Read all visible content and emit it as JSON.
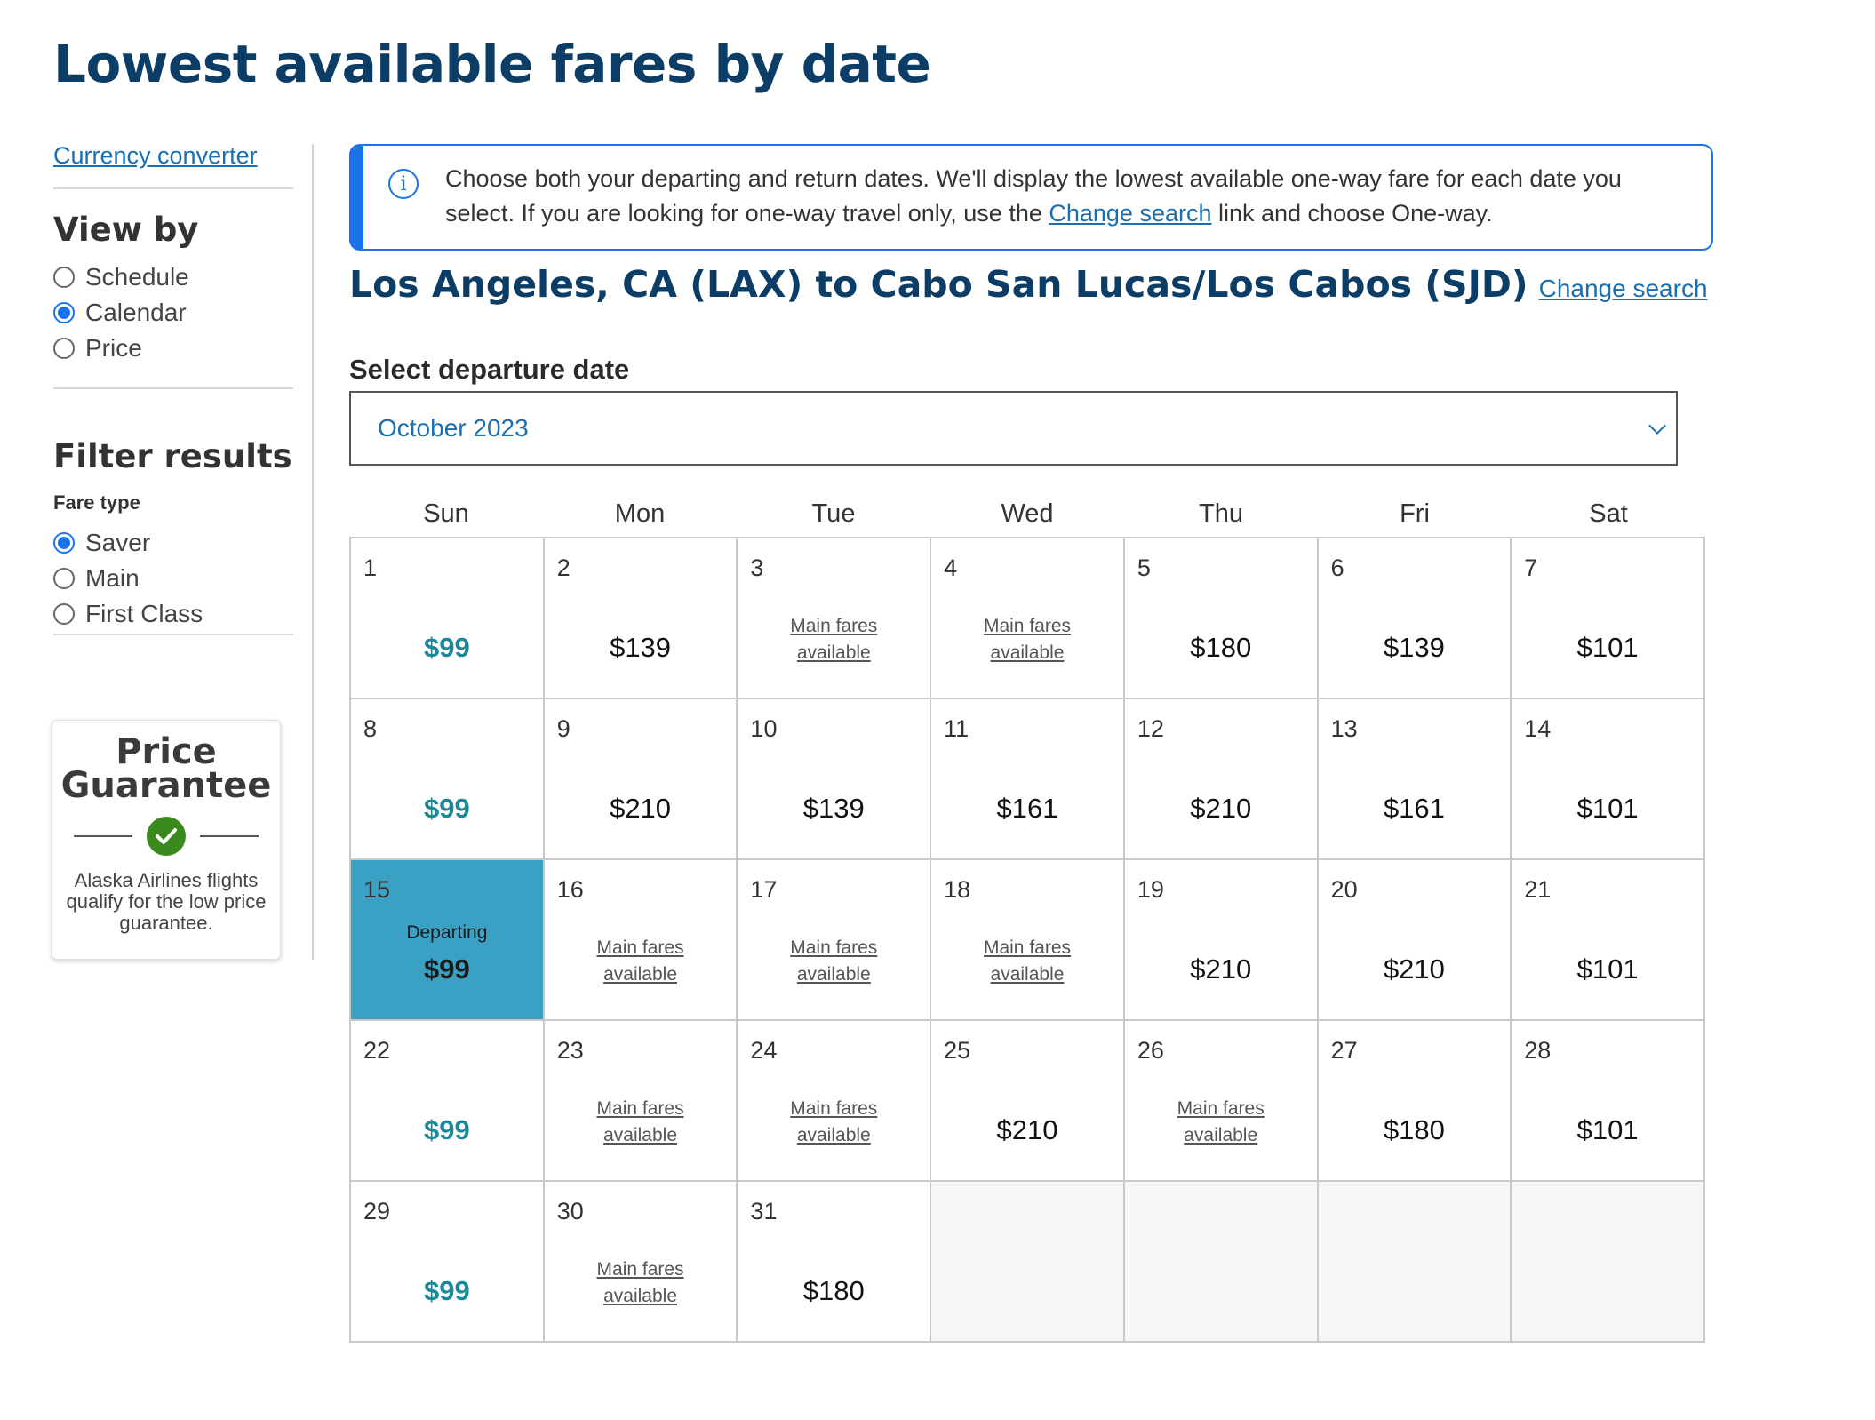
{
  "page_title": "Lowest available fares by date",
  "sidebar": {
    "currency_link": "Currency converter",
    "view_by_heading": "View by",
    "view_options": [
      {
        "label": "Schedule",
        "checked": false
      },
      {
        "label": "Calendar",
        "checked": true
      },
      {
        "label": "Price",
        "checked": false
      }
    ],
    "filter_heading": "Filter results",
    "fare_type_label": "Fare type",
    "fare_options": [
      {
        "label": "Saver",
        "checked": true
      },
      {
        "label": "Main",
        "checked": false
      },
      {
        "label": "First Class",
        "checked": false
      }
    ],
    "price_guarantee": {
      "title_line1": "Price",
      "title_line2": "Guarantee",
      "text": "Alaska Airlines flights qualify for the low price guarantee."
    }
  },
  "info": {
    "text_before": "Choose both your departing and return dates. We'll display the lowest available one-way fare for each date you select. If you are looking for one-way travel only, use the ",
    "link": "Change search",
    "text_after": " link and choose One-way."
  },
  "route": {
    "title": "Los Angeles, CA (LAX) to Cabo San Lucas/Los Cabos (SJD)",
    "change_link": "Change search"
  },
  "calendar": {
    "select_label": "Select departure date",
    "month": "October 2023",
    "day_headers": [
      "Sun",
      "Mon",
      "Tue",
      "Wed",
      "Thu",
      "Fri",
      "Sat"
    ],
    "main_fares_line1": "Main fares",
    "main_fares_line2": "available",
    "departing_label": "Departing",
    "days": [
      {
        "day": "1",
        "price": "$99",
        "low": true
      },
      {
        "day": "2",
        "price": "$139"
      },
      {
        "day": "3",
        "main": true
      },
      {
        "day": "4",
        "main": true
      },
      {
        "day": "5",
        "price": "$180"
      },
      {
        "day": "6",
        "price": "$139"
      },
      {
        "day": "7",
        "price": "$101"
      },
      {
        "day": "8",
        "price": "$99",
        "low": true
      },
      {
        "day": "9",
        "price": "$210"
      },
      {
        "day": "10",
        "price": "$139"
      },
      {
        "day": "11",
        "price": "$161"
      },
      {
        "day": "12",
        "price": "$210"
      },
      {
        "day": "13",
        "price": "$161"
      },
      {
        "day": "14",
        "price": "$101"
      },
      {
        "day": "15",
        "price": "$99",
        "low": true,
        "selected": true
      },
      {
        "day": "16",
        "main": true
      },
      {
        "day": "17",
        "main": true
      },
      {
        "day": "18",
        "main": true
      },
      {
        "day": "19",
        "price": "$210"
      },
      {
        "day": "20",
        "price": "$210"
      },
      {
        "day": "21",
        "price": "$101"
      },
      {
        "day": "22",
        "price": "$99",
        "low": true
      },
      {
        "day": "23",
        "main": true
      },
      {
        "day": "24",
        "main": true
      },
      {
        "day": "25",
        "price": "$210"
      },
      {
        "day": "26",
        "main": true
      },
      {
        "day": "27",
        "price": "$180"
      },
      {
        "day": "28",
        "price": "$101"
      },
      {
        "day": "29",
        "price": "$99",
        "low": true
      },
      {
        "day": "30",
        "main": true
      },
      {
        "day": "31",
        "price": "$180"
      }
    ],
    "trailing_empty_cells": 4
  },
  "colors": {
    "brand_navy": "#0b3d66",
    "link_blue": "#1a6fb0",
    "accent_blue": "#1a73e8",
    "low_fare_teal": "#1a8a99",
    "selected_cell": "#3aa1c4",
    "check_green": "#3b8a1e"
  },
  "icons": {
    "info": "info-icon",
    "dropdown": "chevron-down-icon",
    "guarantee": "checkmark-icon"
  }
}
